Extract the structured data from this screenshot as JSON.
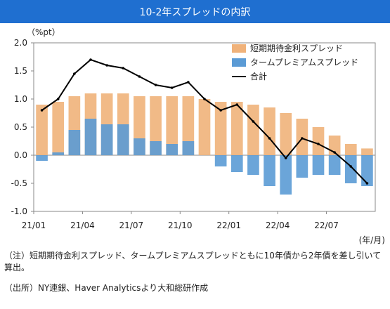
{
  "title": "10-2年スプレッドの内訳",
  "chart_data": {
    "type": "bar",
    "unit": "（%pt）",
    "xlabel": "(年/月)",
    "ylim": [
      -1.0,
      2.0
    ],
    "y_ticks": [
      "2.0",
      "1.5",
      "1.0",
      "0.5",
      "0.0",
      "-0.5",
      "-1.0"
    ],
    "x_ticks": [
      "21/01",
      "21/04",
      "21/07",
      "21/10",
      "22/01",
      "22/04",
      "22/07"
    ],
    "legend_position": "top-right",
    "series": [
      {
        "name": "短期期待金利スプレッド",
        "kind": "bar",
        "color": "#f0b27a",
        "x": [
          "21/01",
          "21/02",
          "21/03",
          "21/04",
          "21/05",
          "21/06",
          "21/07",
          "21/08",
          "21/09",
          "21/10",
          "21/11",
          "21/12",
          "22/01",
          "22/02",
          "22/03",
          "22/04",
          "22/05",
          "22/06",
          "22/07",
          "22/08",
          "22/09"
        ],
        "values": [
          0.9,
          0.95,
          1.05,
          1.1,
          1.1,
          1.1,
          1.05,
          1.05,
          1.05,
          1.05,
          1.0,
          0.95,
          0.95,
          0.9,
          0.85,
          0.75,
          0.65,
          0.5,
          0.35,
          0.2,
          0.12
        ]
      },
      {
        "name": "タームプレミアムスプレッド",
        "kind": "bar",
        "color": "#5b9bd5",
        "x": [
          "21/01",
          "21/02",
          "21/03",
          "21/04",
          "21/05",
          "21/06",
          "21/07",
          "21/08",
          "21/09",
          "21/10",
          "21/11",
          "21/12",
          "22/01",
          "22/02",
          "22/03",
          "22/04",
          "22/05",
          "22/06",
          "22/07",
          "22/08",
          "22/09"
        ],
        "values": [
          -0.1,
          0.05,
          0.45,
          0.65,
          0.55,
          0.55,
          0.3,
          0.25,
          0.2,
          0.25,
          0.0,
          -0.2,
          -0.3,
          -0.35,
          -0.55,
          -0.7,
          -0.4,
          -0.35,
          -0.35,
          -0.5,
          -0.55
        ]
      },
      {
        "name": "合計",
        "kind": "line",
        "color": "#000000",
        "x": [
          "21/01",
          "21/02",
          "21/03",
          "21/04",
          "21/05",
          "21/06",
          "21/07",
          "21/08",
          "21/09",
          "21/10",
          "21/11",
          "21/12",
          "22/01",
          "22/02",
          "22/03",
          "22/04",
          "22/05",
          "22/06",
          "22/07",
          "22/08",
          "22/09"
        ],
        "values": [
          0.8,
          1.0,
          1.45,
          1.7,
          1.6,
          1.55,
          1.4,
          1.25,
          1.2,
          1.3,
          1.0,
          0.8,
          0.9,
          0.6,
          0.3,
          -0.05,
          0.3,
          0.2,
          0.05,
          -0.2,
          -0.5
        ]
      }
    ]
  },
  "notes": {
    "note1": "（注）短期期待金利スプレッド、タームプレミアムスプレッドともに10年債から2年債を差し引いて算出。",
    "note2": "（出所）NY連銀、Haver Analyticsより大和総研作成"
  }
}
